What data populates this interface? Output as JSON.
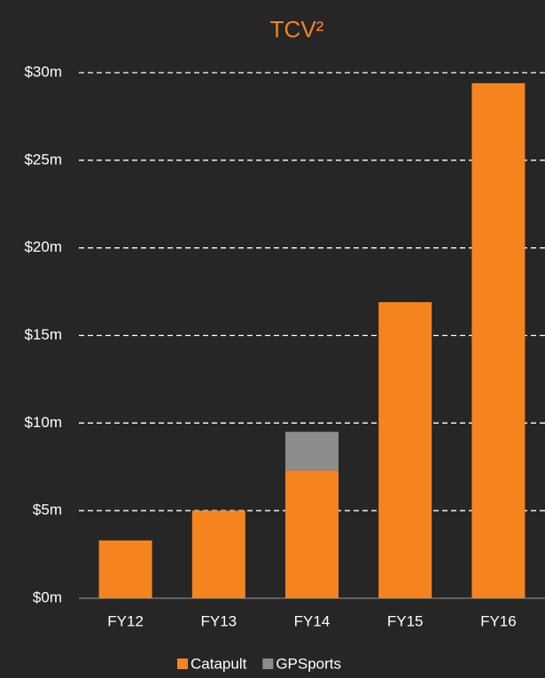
{
  "chart_data": {
    "type": "stacked_bar",
    "title": "TCV²",
    "categories": [
      "FY12",
      "FY13",
      "FY14",
      "FY15",
      "FY16"
    ],
    "series": [
      {
        "name": "Catapult",
        "color": "#f5841f",
        "values": [
          3.3,
          5.0,
          7.3,
          16.9,
          29.4
        ]
      },
      {
        "name": "GPSports",
        "color": "#8c8c8c",
        "values": [
          null,
          null,
          2.2,
          null,
          null
        ]
      }
    ],
    "ylim": [
      0,
      30
    ],
    "yticks": [
      {
        "value": 0,
        "label": "$0m"
      },
      {
        "value": 5,
        "label": "$5m"
      },
      {
        "value": 10,
        "label": "$10m"
      },
      {
        "value": 15,
        "label": "$15m"
      },
      {
        "value": 20,
        "label": "$20m"
      },
      {
        "value": 25,
        "label": "$25m"
      },
      {
        "value": 30,
        "label": "$30m"
      }
    ],
    "grid": true,
    "legend": "bottom"
  }
}
